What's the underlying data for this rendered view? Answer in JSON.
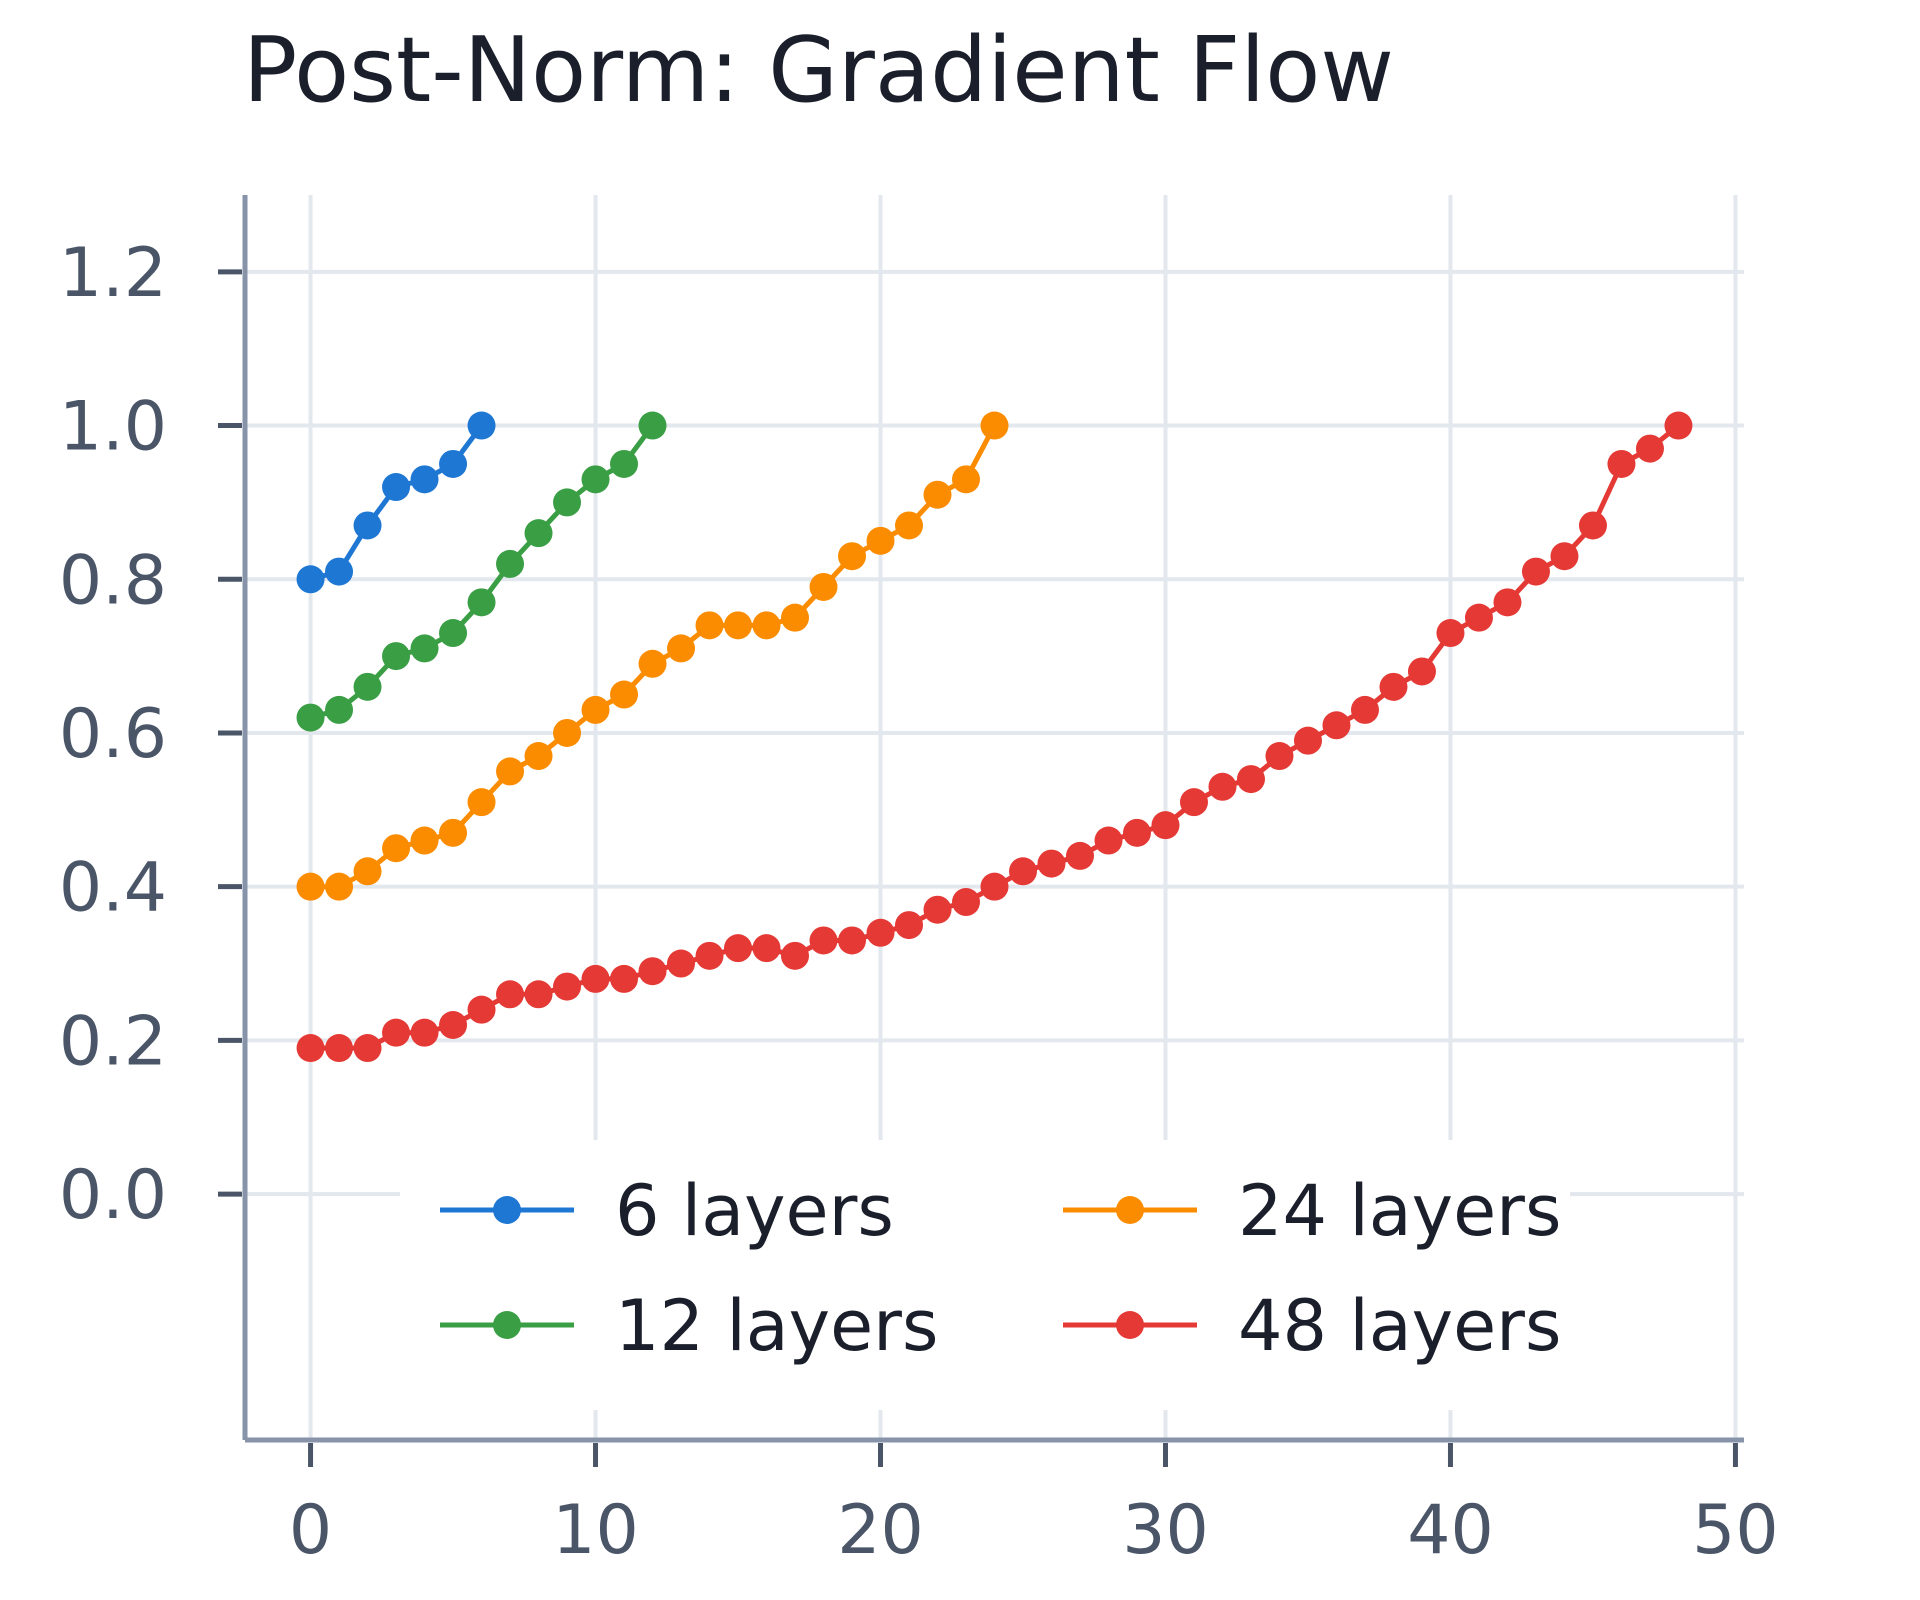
{
  "chart_data": {
    "type": "line",
    "title": "Post-Norm: Gradient Flow",
    "xlabel": "",
    "ylabel": "",
    "xlim": [
      -2.3,
      50.3
    ],
    "ylim": [
      -0.32,
      1.3
    ],
    "xticks": [
      0,
      10,
      20,
      30,
      40,
      50
    ],
    "xtick_labels": [
      "0",
      "10",
      "20",
      "30",
      "40",
      "50"
    ],
    "yticks": [
      0.0,
      0.2,
      0.4,
      0.6,
      0.8,
      1.0,
      1.2
    ],
    "ytick_labels": [
      "0.0",
      "0.2",
      "0.4",
      "0.6",
      "0.8",
      "1.0",
      "1.2"
    ],
    "grid": true,
    "legend_position": "lower-center",
    "series": [
      {
        "name": "6 layers",
        "color": "#1f77d4",
        "x": [
          0,
          1,
          2,
          3,
          4,
          5,
          6
        ],
        "y": [
          0.8,
          0.81,
          0.87,
          0.92,
          0.93,
          0.95,
          1.0
        ]
      },
      {
        "name": "12 layers",
        "color": "#3a9e45",
        "x": [
          0,
          1,
          2,
          3,
          4,
          5,
          6,
          7,
          8,
          9,
          10,
          11,
          12
        ],
        "y": [
          0.62,
          0.63,
          0.66,
          0.7,
          0.71,
          0.73,
          0.77,
          0.82,
          0.86,
          0.9,
          0.93,
          0.95,
          1.0
        ]
      },
      {
        "name": "24 layers",
        "color": "#fb8c00",
        "x": [
          0,
          1,
          2,
          3,
          4,
          5,
          6,
          7,
          8,
          9,
          10,
          11,
          12,
          13,
          14,
          15,
          16,
          17,
          18,
          19,
          20,
          21,
          22,
          23,
          24
        ],
        "y": [
          0.4,
          0.4,
          0.42,
          0.45,
          0.46,
          0.47,
          0.51,
          0.55,
          0.57,
          0.6,
          0.63,
          0.65,
          0.69,
          0.71,
          0.74,
          0.74,
          0.74,
          0.75,
          0.79,
          0.83,
          0.85,
          0.87,
          0.91,
          0.93,
          1.0
        ]
      },
      {
        "name": "48 layers",
        "color": "#e53935",
        "x": [
          0,
          1,
          2,
          3,
          4,
          5,
          6,
          7,
          8,
          9,
          10,
          11,
          12,
          13,
          14,
          15,
          16,
          17,
          18,
          19,
          20,
          21,
          22,
          23,
          24,
          25,
          26,
          27,
          28,
          29,
          30,
          31,
          32,
          33,
          34,
          35,
          36,
          37,
          38,
          39,
          40,
          41,
          42,
          43,
          44,
          45,
          46,
          47,
          48
        ],
        "y": [
          0.19,
          0.19,
          0.19,
          0.21,
          0.21,
          0.22,
          0.24,
          0.26,
          0.26,
          0.27,
          0.28,
          0.28,
          0.29,
          0.3,
          0.31,
          0.32,
          0.32,
          0.31,
          0.33,
          0.33,
          0.34,
          0.35,
          0.37,
          0.38,
          0.4,
          0.42,
          0.43,
          0.44,
          0.46,
          0.47,
          0.48,
          0.51,
          0.53,
          0.54,
          0.57,
          0.59,
          0.61,
          0.63,
          0.66,
          0.68,
          0.73,
          0.75,
          0.77,
          0.81,
          0.83,
          0.87,
          0.95,
          0.97,
          1.0
        ]
      }
    ]
  }
}
